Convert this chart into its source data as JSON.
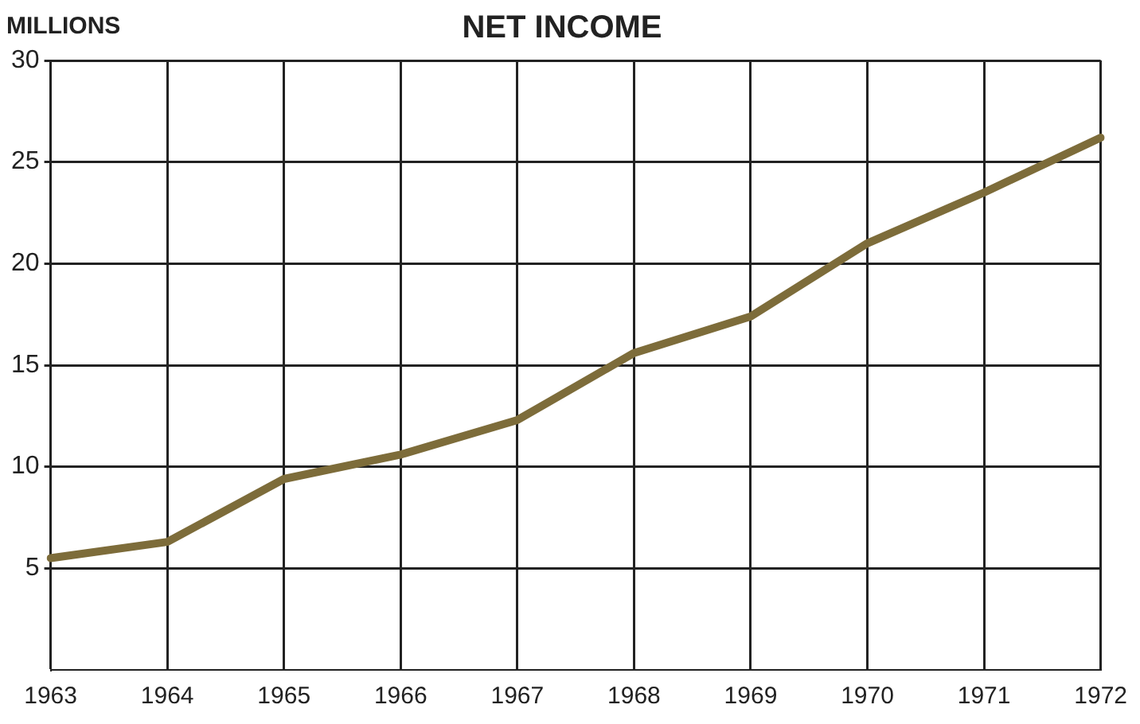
{
  "chart_data": {
    "type": "line",
    "title": "NET INCOME",
    "ylabel": "MILLIONS",
    "categories": [
      "1963",
      "1964",
      "1965",
      "1966",
      "1967",
      "1968",
      "1969",
      "1970",
      "1971",
      "1972"
    ],
    "series": [
      {
        "color": "#7d6c3a",
        "values": [
          5.5,
          6.3,
          9.4,
          10.6,
          12.3,
          15.6,
          17.4,
          21.0,
          23.5,
          26.2
        ]
      }
    ],
    "ylim": [
      0,
      30
    ],
    "yticks": [
      5,
      10,
      15,
      20,
      25,
      30
    ],
    "grid": true,
    "legend": false,
    "marker": "none",
    "line_style": "solid"
  }
}
